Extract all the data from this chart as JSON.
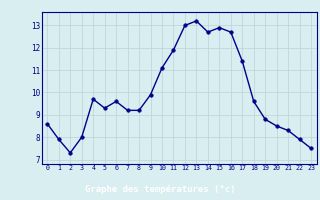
{
  "x": [
    0,
    1,
    2,
    3,
    4,
    5,
    6,
    7,
    8,
    9,
    10,
    11,
    12,
    13,
    14,
    15,
    16,
    17,
    18,
    19,
    20,
    21,
    22,
    23
  ],
  "y": [
    8.6,
    7.9,
    7.3,
    8.0,
    9.7,
    9.3,
    9.6,
    9.2,
    9.2,
    9.9,
    11.1,
    11.9,
    13.0,
    13.2,
    12.7,
    12.9,
    12.7,
    11.4,
    9.6,
    8.8,
    8.5,
    8.3,
    7.9,
    7.5
  ],
  "line_color": "#00008B",
  "marker": "o",
  "markersize": 2.5,
  "linewidth": 1.0,
  "xlabel": "Graphe des températures (°c)",
  "ylabel_ticks": [
    7,
    8,
    9,
    10,
    11,
    12,
    13
  ],
  "xlim": [
    -0.5,
    23.5
  ],
  "ylim": [
    6.8,
    13.6
  ],
  "background_color": "#d8eef0",
  "grid_color": "#b8d4d8",
  "tick_color": "#00008B",
  "spine_color": "#00008B",
  "bottom_bar_color": "#00008B",
  "bottom_bar_text_color": "#ffffff"
}
